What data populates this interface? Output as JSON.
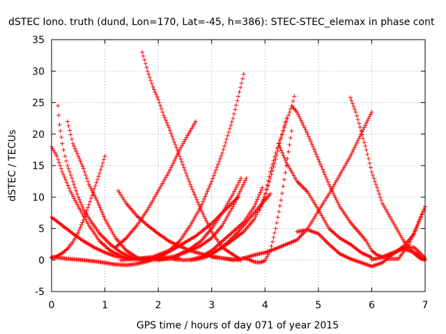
{
  "chart_data": {
    "type": "scatter",
    "title": "dSTEC Iono. truth (dund, Lon=170, Lat=-45, h=386): STEC-STEC_elemax in phase cont",
    "xlabel": "GPS time / hours of day 071 of year 2015",
    "ylabel": "dSTEC  / TECUs",
    "xlim": [
      0,
      7
    ],
    "ylim": [
      -5,
      35
    ],
    "xticks": [
      0,
      1,
      2,
      3,
      4,
      5,
      6,
      7
    ],
    "yticks": [
      -5,
      0,
      5,
      10,
      15,
      20,
      25,
      30,
      35
    ],
    "grid": true,
    "marker": "+",
    "color": "#ff0000",
    "series": [
      {
        "x": [
          0.0,
          0.1,
          0.2,
          0.3,
          0.4,
          0.5,
          0.6,
          0.7,
          0.8,
          0.9,
          1.0
        ],
        "y": [
          0.3,
          0.6,
          1.1,
          1.8,
          2.9,
          4.4,
          6.4,
          8.8,
          11.3,
          13.8,
          16.5
        ]
      },
      {
        "x": [
          0.12,
          0.15,
          0.2,
          0.25,
          0.3,
          0.4,
          0.5,
          0.6,
          0.75,
          0.9,
          1.1,
          1.3,
          1.5,
          1.7,
          1.9,
          2.1,
          2.3
        ],
        "y": [
          24.5,
          21.5,
          18.5,
          16.5,
          15.0,
          12.5,
          10.0,
          8.0,
          6.0,
          4.2,
          2.5,
          1.2,
          0.4,
          0.0,
          0.1,
          0.2,
          0.3
        ]
      },
      {
        "x": [
          0.3,
          0.4,
          0.5,
          0.6,
          0.7,
          0.85,
          1.0,
          1.2,
          1.4,
          1.6,
          1.8,
          2.0,
          2.2,
          2.4
        ],
        "y": [
          22.0,
          18.5,
          16.5,
          14.5,
          12.0,
          9.5,
          6.5,
          3.5,
          1.5,
          0.4,
          0.0,
          0.1,
          0.2,
          0.3
        ]
      },
      {
        "x": [
          0.0,
          0.1,
          0.2,
          0.35,
          0.5,
          0.7,
          0.9,
          1.1,
          1.3,
          1.5,
          1.7,
          1.9,
          2.1
        ],
        "y": [
          18.0,
          16.5,
          14.0,
          11.0,
          8.5,
          5.5,
          3.0,
          1.5,
          0.6,
          0.2,
          0.0,
          0.2,
          0.3
        ]
      },
      {
        "x": [
          0.0,
          0.2,
          0.4,
          0.6,
          0.8,
          1.0,
          1.2,
          1.4,
          1.6,
          1.8,
          2.0,
          2.2
        ],
        "y": [
          6.8,
          5.5,
          4.2,
          3.0,
          2.0,
          1.2,
          0.6,
          0.3,
          0.2,
          0.3,
          0.4,
          0.4
        ]
      },
      {
        "x": [
          0.0,
          0.3,
          0.6,
          0.9,
          1.2,
          1.4,
          1.6,
          1.8,
          2.0,
          2.3,
          2.5,
          2.7,
          3.0,
          3.2,
          3.5
        ],
        "y": [
          0.5,
          0.2,
          0.0,
          -0.3,
          -0.7,
          -0.8,
          -0.6,
          -0.2,
          0.4,
          1.8,
          2.8,
          3.8,
          5.8,
          7.5,
          10.0
        ]
      },
      {
        "x": [
          1.25,
          1.4,
          1.6,
          1.8,
          2.0,
          2.2,
          2.4,
          2.6,
          2.8,
          3.0,
          3.2,
          3.4,
          3.55
        ],
        "y": [
          11.0,
          9.0,
          7.0,
          5.5,
          4.2,
          3.0,
          2.2,
          1.5,
          1.0,
          0.6,
          0.3,
          0.1,
          0.0
        ]
      },
      {
        "x": [
          1.7,
          1.8,
          1.9,
          2.0,
          2.1,
          2.2,
          2.4,
          2.6,
          2.8,
          3.0,
          3.2,
          3.5
        ],
        "y": [
          33.0,
          30.0,
          27.5,
          25.5,
          23.0,
          21.0,
          16.5,
          12.0,
          8.0,
          4.5,
          2.0,
          0.3
        ]
      },
      {
        "x": [
          1.2,
          1.4,
          1.6,
          1.8,
          2.0,
          2.2,
          2.4,
          2.55,
          2.7
        ],
        "y": [
          2.0,
          3.5,
          5.5,
          8.0,
          11.0,
          14.0,
          17.5,
          19.8,
          22.0
        ]
      },
      {
        "x": [
          1.3,
          1.6,
          1.9,
          2.2,
          2.4,
          2.6,
          2.8,
          3.0,
          3.2,
          3.4,
          3.6
        ],
        "y": [
          0.0,
          0.2,
          0.5,
          1.5,
          3.0,
          5.5,
          8.5,
          12.5,
          17.0,
          22.5,
          29.5
        ]
      },
      {
        "x": [
          2.0,
          2.3,
          2.6,
          2.8,
          3.0,
          3.2,
          3.4,
          3.55
        ],
        "y": [
          0.0,
          0.5,
          1.8,
          3.0,
          5.0,
          7.5,
          10.5,
          13.0
        ]
      },
      {
        "x": [
          2.0,
          2.3,
          2.6,
          2.8,
          3.0,
          3.2,
          3.4,
          3.65
        ],
        "y": [
          0.1,
          0.6,
          1.5,
          2.3,
          3.5,
          5.5,
          8.5,
          13.0
        ]
      },
      {
        "x": [
          2.6,
          2.8,
          3.0,
          3.2,
          3.4,
          3.6,
          3.8,
          3.95
        ],
        "y": [
          0.0,
          0.5,
          1.5,
          3.0,
          4.5,
          6.0,
          8.5,
          11.5
        ]
      },
      {
        "x": [
          2.8,
          3.0,
          3.2,
          3.4,
          3.6,
          3.8,
          4.0,
          4.2,
          4.4
        ],
        "y": [
          0.3,
          1.0,
          2.0,
          3.2,
          4.5,
          6.5,
          10.0,
          16.0,
          22.5
        ]
      },
      {
        "x": [
          2.3,
          2.5,
          2.7,
          2.9,
          3.1,
          3.3,
          3.5,
          3.7,
          3.9,
          4.0,
          4.1
        ],
        "y": [
          0.1,
          0.0,
          0.1,
          0.5,
          1.5,
          2.8,
          4.5,
          6.5,
          8.5,
          9.5,
          10.5
        ]
      },
      {
        "x": [
          3.6,
          3.7,
          3.8,
          3.9,
          4.0,
          4.1,
          4.2,
          4.3,
          4.4,
          4.5
        ],
        "y": [
          0.3,
          0.1,
          -0.3,
          -0.4,
          -0.1,
          1.5,
          5.0,
          9.5,
          15.0,
          20.5
        ]
      },
      {
        "x": [
          3.9,
          4.0,
          4.1,
          4.2,
          4.25,
          4.3,
          4.4,
          4.5,
          4.55
        ],
        "y": [
          8.0,
          10.5,
          14.0,
          17.0,
          18.5,
          19.5,
          22.0,
          24.5,
          26.0
        ]
      },
      {
        "x": [
          4.25,
          4.4,
          4.6,
          4.8,
          5.0,
          5.2,
          5.4,
          5.6,
          5.8,
          6.0
        ],
        "y": [
          18.5,
          15.5,
          12.5,
          10.8,
          8.0,
          5.0,
          3.5,
          2.5,
          1.2,
          0.4
        ]
      },
      {
        "x": [
          4.5,
          4.6,
          4.8,
          5.0,
          5.2,
          5.4,
          5.6,
          5.8,
          5.9,
          6.0,
          6.1,
          6.2,
          6.4,
          6.6,
          6.8,
          7.0
        ],
        "y": [
          24.5,
          23.5,
          20.0,
          16.0,
          12.0,
          8.5,
          6.0,
          4.0,
          3.0,
          1.5,
          0.8,
          0.5,
          1.2,
          1.8,
          1.2,
          0.0
        ]
      },
      {
        "x": [
          3.0,
          3.2,
          3.4,
          3.6,
          3.8,
          4.0,
          4.2,
          4.4,
          4.6,
          4.8,
          5.0,
          5.2,
          5.4,
          5.6,
          5.8,
          6.0
        ],
        "y": [
          0.5,
          0.3,
          0.0,
          0.3,
          0.8,
          1.2,
          1.8,
          2.5,
          3.2,
          5.0,
          7.8,
          10.5,
          13.5,
          16.5,
          20.0,
          23.5
        ]
      },
      {
        "x": [
          4.6,
          4.8,
          5.0,
          5.2,
          5.4,
          5.6,
          5.8,
          6.0,
          6.2,
          6.4,
          6.6,
          6.8,
          7.0
        ],
        "y": [
          4.5,
          4.8,
          4.2,
          2.5,
          1.0,
          0.2,
          -0.4,
          -1.0,
          -0.4,
          1.0,
          2.0,
          2.0,
          0.3
        ]
      },
      {
        "x": [
          5.6,
          5.7,
          5.8,
          5.9,
          6.0,
          6.2,
          6.4,
          6.6,
          6.8,
          6.9,
          7.0
        ],
        "y": [
          25.8,
          23.5,
          20.5,
          17.5,
          14.0,
          9.0,
          6.0,
          3.0,
          1.0,
          0.3,
          0.0
        ]
      },
      {
        "x": [
          6.3,
          6.5,
          6.7,
          6.9,
          7.0
        ],
        "y": [
          0.2,
          0.2,
          2.5,
          6.5,
          8.5
        ]
      },
      {
        "x": [
          6.0,
          6.2,
          6.4,
          6.6,
          6.8,
          7.0
        ],
        "y": [
          0.1,
          0.4,
          1.0,
          2.2,
          4.2,
          8.5
        ]
      }
    ]
  }
}
